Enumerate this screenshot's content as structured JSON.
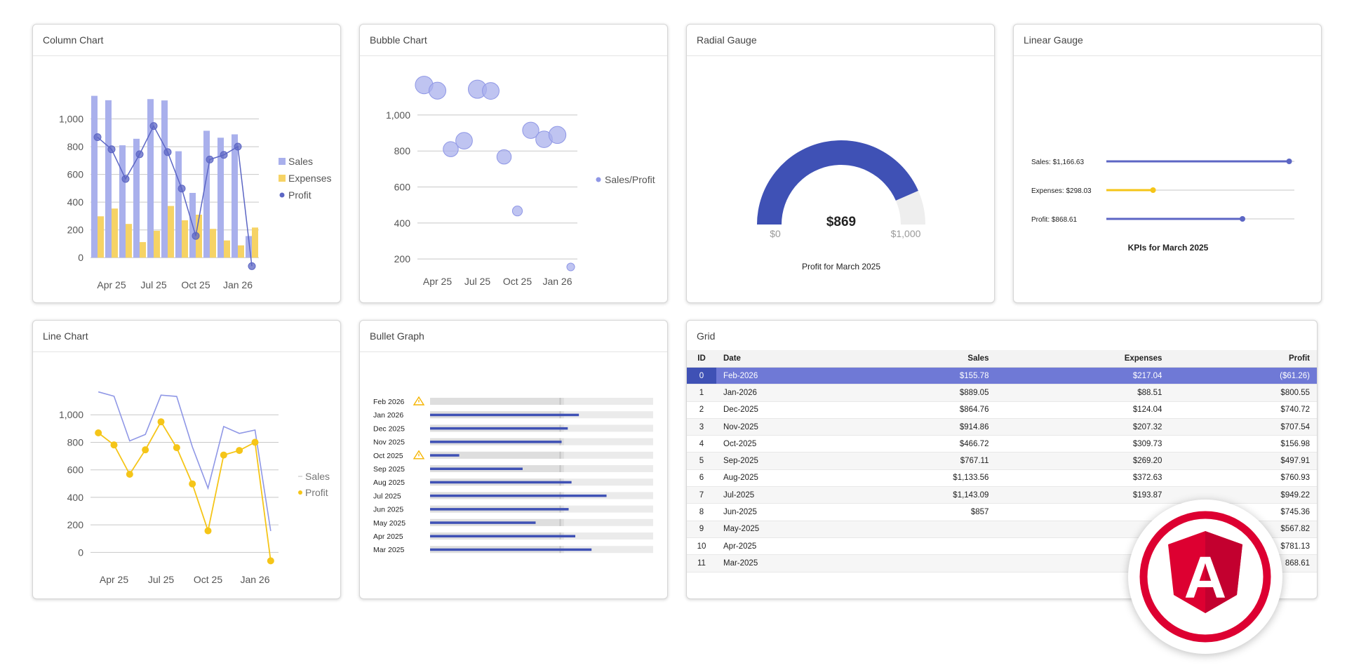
{
  "colors": {
    "sales": "#a9b0ec",
    "sales_line": "#8f97e6",
    "expenses": "#f6d365",
    "profit": "#5c66c4",
    "gauge": "#3f51b5",
    "profit_line": "#f5c518",
    "warning": "#f5b400",
    "selected_row": "#6f79d6",
    "selected_id": "#3f51b5"
  },
  "panels": {
    "column_chart": {
      "title": "Column Chart"
    },
    "bubble_chart": {
      "title": "Bubble Chart"
    },
    "radial_gauge": {
      "title": "Radial Gauge",
      "min_label": "$0",
      "max_label": "$1,000",
      "value_label": "$869",
      "caption": "Profit for March 2025"
    },
    "linear_gauge": {
      "title": "Linear Gauge",
      "caption": "KPIs for March 2025"
    },
    "line_chart": {
      "title": "Line Chart"
    },
    "bullet_graph": {
      "title": "Bullet Graph"
    },
    "grid": {
      "title": "Grid"
    }
  },
  "chart_data": [
    {
      "type": "bar",
      "panel": "column_chart",
      "x_ticks": [
        "Apr 25",
        "Jul 25",
        "Oct 25",
        "Jan 26"
      ],
      "y_ticks": [
        "0",
        "200",
        "400",
        "600",
        "800",
        "1,000"
      ],
      "ylim": [
        -100,
        1200
      ],
      "categories": [
        "Mar-2025",
        "Apr-2025",
        "May-2025",
        "Jun-2025",
        "Jul-2025",
        "Aug-2025",
        "Sep-2025",
        "Oct-2025",
        "Nov-2025",
        "Dec-2025",
        "Jan-2026",
        "Feb-2026"
      ],
      "series": [
        {
          "name": "Sales",
          "kind": "bar",
          "values": [
            1166.63,
            1135,
            810,
            857,
            1143.09,
            1133.56,
            767.11,
            466.72,
            914.86,
            864.76,
            889.05,
            155.78
          ]
        },
        {
          "name": "Expenses",
          "kind": "bar",
          "values": [
            298.03,
            354,
            243,
            112,
            194,
            372.63,
            269.2,
            309.73,
            207.32,
            124.04,
            88.51,
            217.04
          ]
        },
        {
          "name": "Profit",
          "kind": "line",
          "values": [
            868.61,
            781.13,
            567.82,
            745.36,
            949.22,
            760.93,
            497.91,
            156.98,
            707.54,
            740.72,
            800.55,
            -61.26
          ]
        }
      ],
      "legend": "right"
    },
    {
      "type": "scatter",
      "panel": "bubble_chart",
      "x_ticks": [
        "Apr 25",
        "Jul 25",
        "Oct 25",
        "Jan 26"
      ],
      "y_ticks": [
        "200",
        "400",
        "600",
        "800",
        "1,000"
      ],
      "ylim": [
        150,
        1210
      ],
      "series": [
        {
          "name": "Sales/Profit",
          "x": [
            "Mar-2025",
            "Apr-2025",
            "May-2025",
            "Jun-2025",
            "Jul-2025",
            "Aug-2025",
            "Sep-2025",
            "Oct-2025",
            "Nov-2025",
            "Dec-2025",
            "Jan-2026",
            "Feb-2026"
          ],
          "y": [
            1166.63,
            1135,
            810,
            857,
            1143.09,
            1133.56,
            767.11,
            466.72,
            914.86,
            864.76,
            889.05,
            155.78
          ],
          "size": [
            868.61,
            781.13,
            567.82,
            745.36,
            949.22,
            760.93,
            497.91,
            156.98,
            707.54,
            740.72,
            800.55,
            61.26
          ]
        }
      ],
      "legend": "right"
    },
    {
      "type": "gauge",
      "panel": "radial_gauge",
      "min": 0,
      "max": 1000,
      "value": 868.61
    },
    {
      "type": "bar",
      "panel": "linear_gauge",
      "min": 0,
      "max": 1200,
      "rows": [
        {
          "label": "Sales: $1,166.63",
          "value": 1166.63,
          "color": "#5c66c4"
        },
        {
          "label": "Expenses: $298.03",
          "value": 298.03,
          "color": "#f5c518"
        },
        {
          "label": "Profit: $868.61",
          "value": 868.61,
          "color": "#5c66c4"
        }
      ]
    },
    {
      "type": "line",
      "panel": "line_chart",
      "x_ticks": [
        "Apr 25",
        "Jul 25",
        "Oct 25",
        "Jan 26"
      ],
      "y_ticks": [
        "0",
        "200",
        "400",
        "600",
        "800",
        "1,000"
      ],
      "ylim": [
        -100,
        1200
      ],
      "series": [
        {
          "name": "Sales",
          "values": [
            1166.63,
            1135,
            810,
            857,
            1143.09,
            1133.56,
            767.11,
            466.72,
            914.86,
            864.76,
            889.05,
            155.78
          ]
        },
        {
          "name": "Profit",
          "values": [
            868.61,
            781.13,
            567.82,
            745.36,
            949.22,
            760.93,
            497.91,
            156.98,
            707.54,
            740.72,
            800.55,
            -61.26
          ]
        }
      ],
      "legend": "right"
    },
    {
      "type": "bar",
      "panel": "bullet_graph",
      "max": 1200,
      "target": 700,
      "rows": [
        {
          "label": "Feb 2026",
          "value": 0,
          "warning": true
        },
        {
          "label": "Jan 2026",
          "value": 800.55
        },
        {
          "label": "Dec 2025",
          "value": 740.72
        },
        {
          "label": "Nov 2025",
          "value": 707.54
        },
        {
          "label": "Oct 2025",
          "value": 156.98,
          "warning": true
        },
        {
          "label": "Sep 2025",
          "value": 497.91
        },
        {
          "label": "Aug 2025",
          "value": 760.93
        },
        {
          "label": "Jul 2025",
          "value": 949.22
        },
        {
          "label": "Jun 2025",
          "value": 745.36
        },
        {
          "label": "May 2025",
          "value": 567.82
        },
        {
          "label": "Apr 2025",
          "value": 781.13
        },
        {
          "label": "Mar 2025",
          "value": 868.61
        }
      ]
    }
  ],
  "grid": {
    "columns": [
      "ID",
      "Date",
      "Sales",
      "Expenses",
      "Profit"
    ],
    "selected_row": 0,
    "rows": [
      [
        "0",
        "Feb-2026",
        "$155.78",
        "$217.04",
        "($61.26)"
      ],
      [
        "1",
        "Jan-2026",
        "$889.05",
        "$88.51",
        "$800.55"
      ],
      [
        "2",
        "Dec-2025",
        "$864.76",
        "$124.04",
        "$740.72"
      ],
      [
        "3",
        "Nov-2025",
        "$914.86",
        "$207.32",
        "$707.54"
      ],
      [
        "4",
        "Oct-2025",
        "$466.72",
        "$309.73",
        "$156.98"
      ],
      [
        "5",
        "Sep-2025",
        "$767.11",
        "$269.20",
        "$497.91"
      ],
      [
        "6",
        "Aug-2025",
        "$1,133.56",
        "$372.63",
        "$760.93"
      ],
      [
        "7",
        "Jul-2025",
        "$1,143.09",
        "$193.87",
        "$949.22"
      ],
      [
        "8",
        "Jun-2025",
        "$857",
        "",
        "$745.36"
      ],
      [
        "9",
        "May-2025",
        "",
        "",
        "$567.82"
      ],
      [
        "10",
        "Apr-2025",
        "",
        "",
        "$781.13"
      ],
      [
        "11",
        "Mar-2025",
        "",
        "",
        "868.61"
      ]
    ]
  },
  "logo": {
    "letter": "A",
    "icon": "angular-logo"
  }
}
